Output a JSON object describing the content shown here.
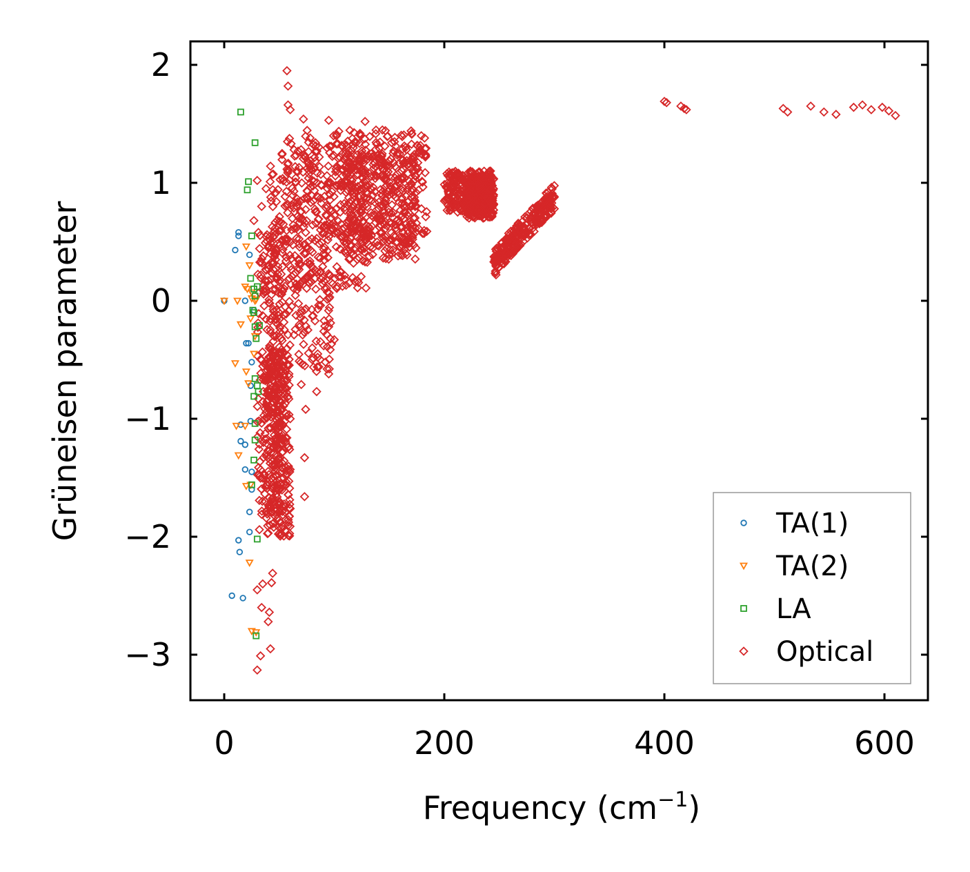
{
  "chart_data": {
    "type": "scatter",
    "title": "",
    "xlabel_main": "Frequency (cm",
    "xlabel_sup": "−1",
    "xlabel_end": ")",
    "ylabel": "Grüneisen parameter",
    "xlim": [
      -15,
      640
    ],
    "ylim": [
      -3.4,
      2.2
    ],
    "xticks": [
      0,
      200,
      400,
      600
    ],
    "xtick_labels": [
      "0",
      "200",
      "400",
      "600"
    ],
    "yticks": [
      2,
      1,
      0,
      -1,
      -2,
      -3
    ],
    "ytick_labels": [
      "2",
      "1",
      "0",
      "−1",
      "−2",
      "−3"
    ],
    "legend_position": "lower-right",
    "series": [
      {
        "name": "TA(1)",
        "marker": "circle",
        "color": "#1f77b4",
        "points": [
          [
            0,
            0
          ],
          [
            13,
            0.58
          ],
          [
            13,
            0.55
          ],
          [
            10,
            0.43
          ],
          [
            23,
            0.39
          ],
          [
            19,
            0
          ],
          [
            20,
            -0.36
          ],
          [
            22,
            -0.36
          ],
          [
            25,
            -0.52
          ],
          [
            24,
            -0.72
          ],
          [
            15,
            -1.05
          ],
          [
            24,
            -1.02
          ],
          [
            15,
            -1.19
          ],
          [
            19,
            -1.22
          ],
          [
            19,
            -1.43
          ],
          [
            25,
            -1.45
          ],
          [
            25,
            -1.6
          ],
          [
            23,
            -1.79
          ],
          [
            23,
            -1.96
          ],
          [
            13,
            -2.03
          ],
          [
            14,
            -2.13
          ],
          [
            7,
            -2.5
          ],
          [
            17,
            -2.52
          ],
          [
            27,
            -0.08
          ]
        ]
      },
      {
        "name": "TA(2)",
        "marker": "triangle-down",
        "color": "#ff7f0e",
        "points": [
          [
            0,
            0
          ],
          [
            12,
            0
          ],
          [
            20,
            0.46
          ],
          [
            23,
            0.3
          ],
          [
            19,
            0.12
          ],
          [
            21,
            0.1
          ],
          [
            25,
            0.07
          ],
          [
            25,
            0.02
          ],
          [
            29,
            0.01
          ],
          [
            28,
            0
          ],
          [
            15,
            -0.2
          ],
          [
            24,
            -0.15
          ],
          [
            10,
            -0.53
          ],
          [
            20,
            -0.6
          ],
          [
            22,
            -0.7
          ],
          [
            28,
            -0.3
          ],
          [
            27,
            -0.45
          ],
          [
            11,
            -1.06
          ],
          [
            19,
            -1.06
          ],
          [
            13,
            -1.31
          ],
          [
            20,
            -1.57
          ],
          [
            24,
            -1.56
          ],
          [
            23,
            -2.22
          ],
          [
            25,
            -2.8
          ],
          [
            29,
            -2.81
          ]
        ]
      },
      {
        "name": "LA",
        "marker": "square",
        "color": "#2ca02c",
        "points": [
          [
            15,
            1.6
          ],
          [
            28,
            1.34
          ],
          [
            22,
            1.01
          ],
          [
            21,
            0.94
          ],
          [
            25,
            0.55
          ],
          [
            24,
            0.19
          ],
          [
            30,
            0.12
          ],
          [
            27,
            0.1
          ],
          [
            28,
            0.04
          ],
          [
            26,
            -0.08
          ],
          [
            28,
            -0.22
          ],
          [
            32,
            -0.21
          ],
          [
            29,
            -0.32
          ],
          [
            28,
            -0.66
          ],
          [
            30,
            -0.72
          ],
          [
            27,
            -0.81
          ],
          [
            28,
            -1.04
          ],
          [
            28,
            -1.18
          ],
          [
            27,
            -1.35
          ],
          [
            25,
            -1.56
          ],
          [
            30,
            -2.02
          ],
          [
            29,
            -2.84
          ],
          [
            27,
            -0.1
          ],
          [
            31,
            -0.77
          ]
        ]
      },
      {
        "name": "Optical",
        "marker": "diamond",
        "color": "#d62728",
        "points": [
          [
            57,
            1.95
          ],
          [
            58,
            1.82
          ],
          [
            58,
            1.66
          ],
          [
            60,
            1.62
          ],
          [
            72,
            1.54
          ],
          [
            95,
            1.53
          ],
          [
            128,
            1.52
          ],
          [
            400,
            1.69
          ],
          [
            402,
            1.68
          ],
          [
            415,
            1.65
          ],
          [
            418,
            1.63
          ],
          [
            420,
            1.62
          ],
          [
            508,
            1.63
          ],
          [
            512,
            1.6
          ],
          [
            533,
            1.65
          ],
          [
            545,
            1.6
          ],
          [
            556,
            1.58
          ],
          [
            572,
            1.64
          ],
          [
            580,
            1.66
          ],
          [
            588,
            1.62
          ],
          [
            598,
            1.64
          ],
          [
            604,
            1.61
          ],
          [
            610,
            1.57
          ],
          [
            30,
            1.02
          ],
          [
            38,
            0.95
          ],
          [
            27,
            0.68
          ],
          [
            34,
            0.8
          ],
          [
            30,
            -2.45
          ],
          [
            34,
            -2.6
          ],
          [
            40,
            -2.72
          ],
          [
            42,
            -2.95
          ],
          [
            30,
            -3.13
          ],
          [
            33,
            -3.01
          ],
          [
            44,
            -2.31
          ],
          [
            43,
            -2.39
          ],
          [
            41,
            -2.64
          ],
          [
            35,
            -2.4
          ],
          [
            32,
            -1.94
          ],
          [
            45,
            -1.92
          ],
          [
            40,
            -1.97
          ],
          [
            34,
            -1.81
          ],
          [
            37,
            -1.7
          ],
          [
            50,
            -1.6
          ],
          [
            60,
            -1.43
          ],
          [
            73,
            -1.33
          ],
          [
            73,
            -1.66
          ],
          [
            60,
            -1.0
          ],
          [
            74,
            -0.92
          ],
          [
            70,
            -0.71
          ],
          [
            84,
            -0.77
          ],
          [
            95,
            -0.62
          ],
          [
            86,
            -0.56
          ],
          [
            92,
            -0.52
          ],
          [
            95,
            -0.22
          ],
          [
            100,
            -0.33
          ],
          [
            242,
            1.1
          ],
          [
            246,
            0.35
          ],
          [
            247,
            0.22
          ],
          [
            262,
            0.55
          ],
          [
            272,
            0.62
          ],
          [
            282,
            0.75
          ],
          [
            296,
            0.82
          ],
          [
            300,
            0.78
          ],
          [
            207,
            1.05
          ],
          [
            203,
            0.86
          ],
          [
            223,
            0.92
          ],
          [
            232,
            0.72
          ],
          [
            210,
            0.88
          ],
          [
            162,
            0.72
          ],
          [
            172,
            0.7
          ],
          [
            154,
            0.55
          ],
          [
            158,
            0.38
          ],
          [
            128,
            0.33
          ],
          [
            121,
            0.35
          ],
          [
            112,
            0.42
          ],
          [
            134,
            0.52
          ],
          [
            80,
            -0.4
          ],
          [
            85,
            -0.45
          ]
        ]
      }
    ],
    "bulk_clusters": [
      {
        "x": [
          30,
          55
        ],
        "y": [
          -1.8,
          0.6
        ]
      },
      {
        "x": [
          40,
          100
        ],
        "y": [
          -0.6,
          1.3
        ]
      },
      {
        "x": [
          55,
          130
        ],
        "y": [
          0.1,
          1.45
        ]
      },
      {
        "x": [
          100,
          185
        ],
        "y": [
          0.5,
          1.45
        ]
      },
      {
        "x": [
          110,
          175
        ],
        "y": [
          0.35,
          1.25
        ]
      },
      {
        "x": [
          38,
          60
        ],
        "y": [
          -2.0,
          -0.4
        ]
      },
      {
        "x": [
          200,
          245
        ],
        "y": [
          0.75,
          1.1
        ]
      },
      {
        "x": [
          220,
          245
        ],
        "y": [
          0.7,
          1.05
        ]
      },
      {
        "x": [
          245,
          300
        ],
        "y": [
          0.22,
          0.85
        ]
      }
    ]
  }
}
